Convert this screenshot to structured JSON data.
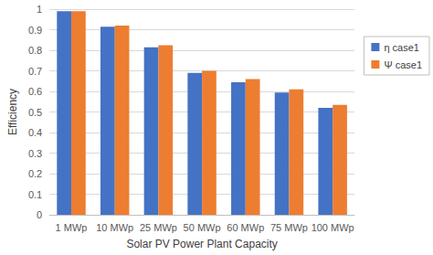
{
  "chart_data": {
    "type": "bar",
    "x_label": "Solar PV Power Plant Capacity",
    "y_label": "Efficiency",
    "categories": [
      "1 MWp",
      "10 MWp",
      "25 MWp",
      "50 MWp",
      "60 MWp",
      "75 MWp",
      "100 MWp"
    ],
    "series": [
      {
        "name": "η case1",
        "color": "#4472c4",
        "values": [
          0.99,
          0.915,
          0.815,
          0.69,
          0.645,
          0.595,
          0.52
        ]
      },
      {
        "name": "Ψ case1",
        "color": "#ed7d31",
        "values": [
          0.99,
          0.92,
          0.825,
          0.7,
          0.66,
          0.61,
          0.535
        ]
      }
    ],
    "ylim": [
      0,
      1
    ],
    "yticks": [
      0,
      0.1,
      0.2,
      0.3,
      0.4,
      0.5,
      0.6,
      0.7,
      0.8,
      0.9,
      1
    ],
    "grid": true,
    "legend": "right"
  }
}
